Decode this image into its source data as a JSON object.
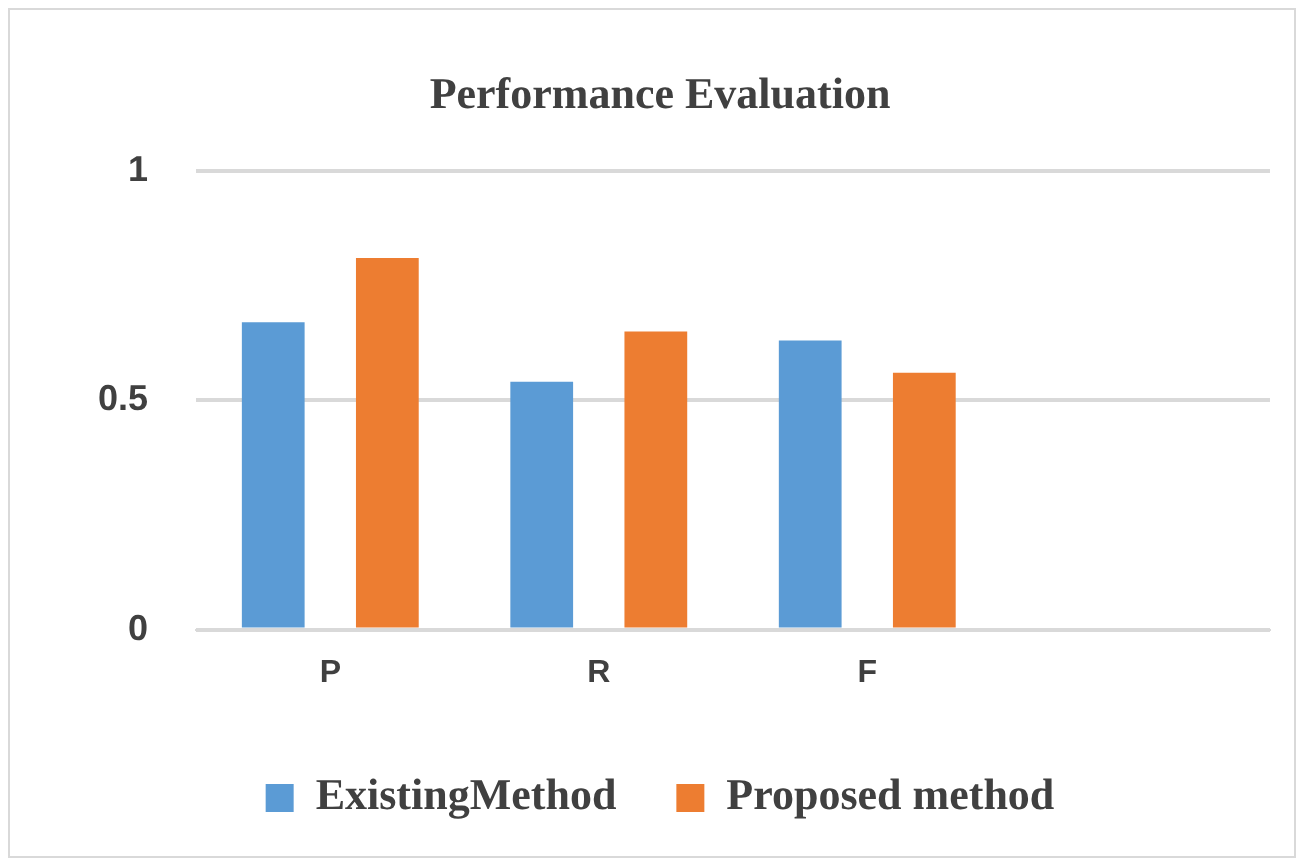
{
  "chart_data": {
    "type": "bar",
    "title": "Performance Evaluation",
    "categories": [
      "P",
      "R",
      "F",
      null
    ],
    "series": [
      {
        "name": "ExistingMethod",
        "color": "#5b9bd5",
        "values": [
          0.67,
          0.54,
          0.63,
          null
        ]
      },
      {
        "name": "Proposed method",
        "color": "#ed7d31",
        "values": [
          0.81,
          0.65,
          0.56,
          null
        ]
      }
    ],
    "ylim": [
      0,
      1
    ],
    "yticks": [
      0,
      0.5,
      1
    ],
    "grid": "y",
    "legend": "bottom"
  }
}
